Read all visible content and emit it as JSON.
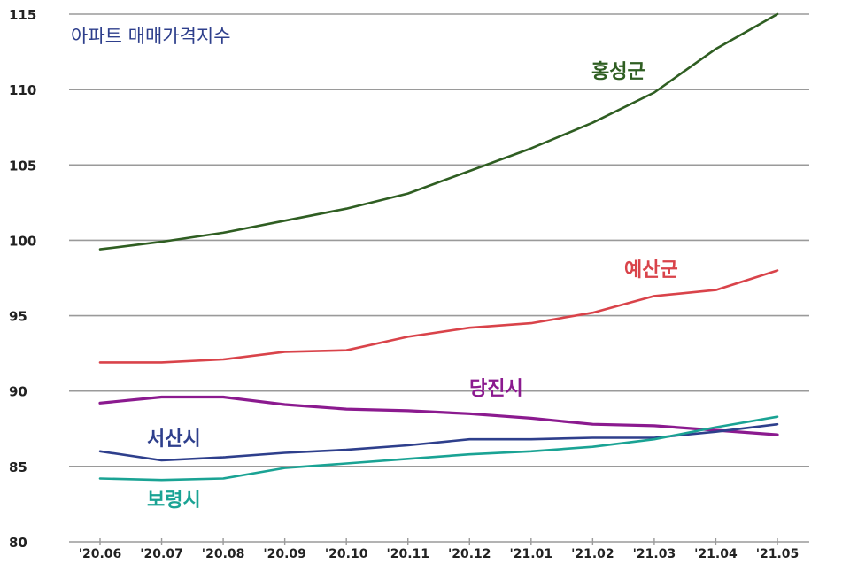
{
  "chart_data": {
    "type": "line",
    "title": "아파트 매매가격지수",
    "xlabel": "",
    "ylabel": "",
    "ylim": [
      80,
      115
    ],
    "yticks": [
      80,
      85,
      90,
      95,
      100,
      105,
      110,
      115
    ],
    "grid": true,
    "categories": [
      "'20.06",
      "'20.07",
      "'20.08",
      "'20.09",
      "'20.10",
      "'20.11",
      "'20.12",
      "'21.01",
      "'21.02",
      "'21.03",
      "'21.04",
      "'21.05"
    ],
    "series": [
      {
        "name": "홍성군",
        "color": "#2f5e22",
        "values": [
          99.4,
          99.9,
          100.5,
          101.3,
          102.1,
          103.1,
          104.6,
          106.1,
          107.8,
          109.8,
          112.7,
          115.0
        ]
      },
      {
        "name": "예산군",
        "color": "#d9434a",
        "values": [
          91.9,
          91.9,
          92.1,
          92.6,
          92.7,
          93.6,
          94.2,
          94.5,
          95.2,
          96.3,
          96.7,
          98.0
        ]
      },
      {
        "name": "당진시",
        "color": "#8b1a8f",
        "values": [
          89.2,
          89.6,
          89.6,
          89.1,
          88.8,
          88.7,
          88.5,
          88.2,
          87.8,
          87.7,
          87.4,
          87.1
        ]
      },
      {
        "name": "서산시",
        "color": "#2e3f8c",
        "values": [
          86.0,
          85.4,
          85.6,
          85.9,
          86.1,
          86.4,
          86.8,
          86.8,
          86.9,
          86.9,
          87.3,
          87.8
        ]
      },
      {
        "name": "보령시",
        "color": "#1aa394",
        "values": [
          84.2,
          84.1,
          84.2,
          84.9,
          85.2,
          85.5,
          85.8,
          86.0,
          86.3,
          86.8,
          87.6,
          88.3
        ]
      }
    ]
  }
}
